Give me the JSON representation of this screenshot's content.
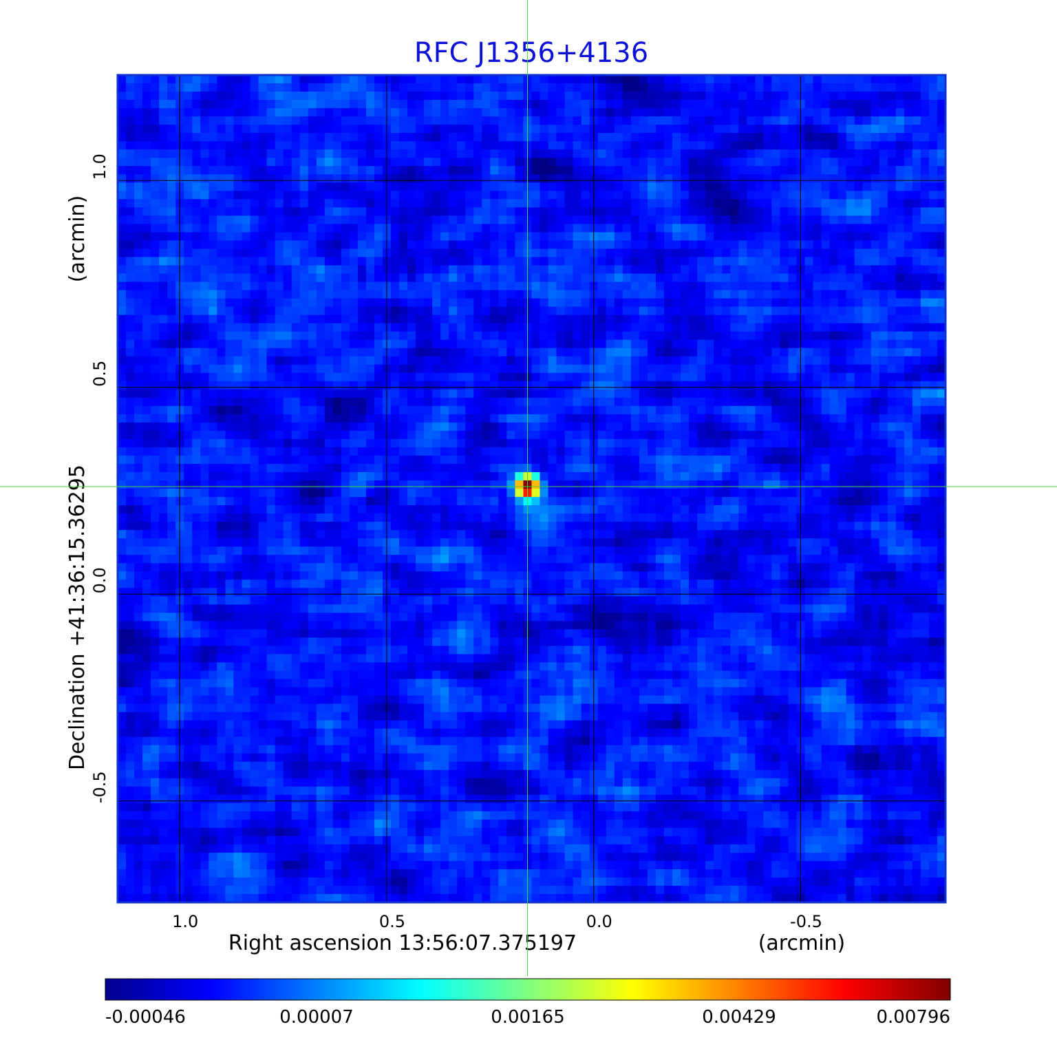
{
  "chart_data": {
    "type": "heatmap",
    "title": "RFC J1356+4136",
    "xlabel": "Right ascension  13:56:07.375197",
    "xunit": "(arcmin)",
    "ylabel": "Declination  +41:36:15.36295",
    "yunit": "(arcmin)",
    "xlim": [
      1.15,
      -0.85
    ],
    "ylim": [
      -0.745,
      1.255
    ],
    "x_ticks": [
      "1.0",
      "0.5",
      "0.0",
      "-0.5"
    ],
    "x_tick_values": [
      1.0,
      0.5,
      0.0,
      -0.5
    ],
    "y_ticks": [
      "-0.5",
      "0.0",
      "0.5",
      "1.0"
    ],
    "y_tick_values": [
      -0.5,
      0.0,
      0.5,
      1.0
    ],
    "grid": true,
    "crosshair": {
      "x": 0.16,
      "y": 0.26,
      "color": "#3ddc3d"
    },
    "source": {
      "x": 0.16,
      "y": 0.26,
      "peak": 0.00796
    },
    "colorbar": {
      "labels": [
        "-0.00046",
        "0.00007",
        "0.00165",
        "0.00429",
        "0.00796"
      ],
      "colormap": "jet"
    },
    "background_level": 7e-05,
    "colors": {
      "frame": "#1030d0",
      "title": "#0b12d6",
      "grid": "#000000"
    }
  }
}
